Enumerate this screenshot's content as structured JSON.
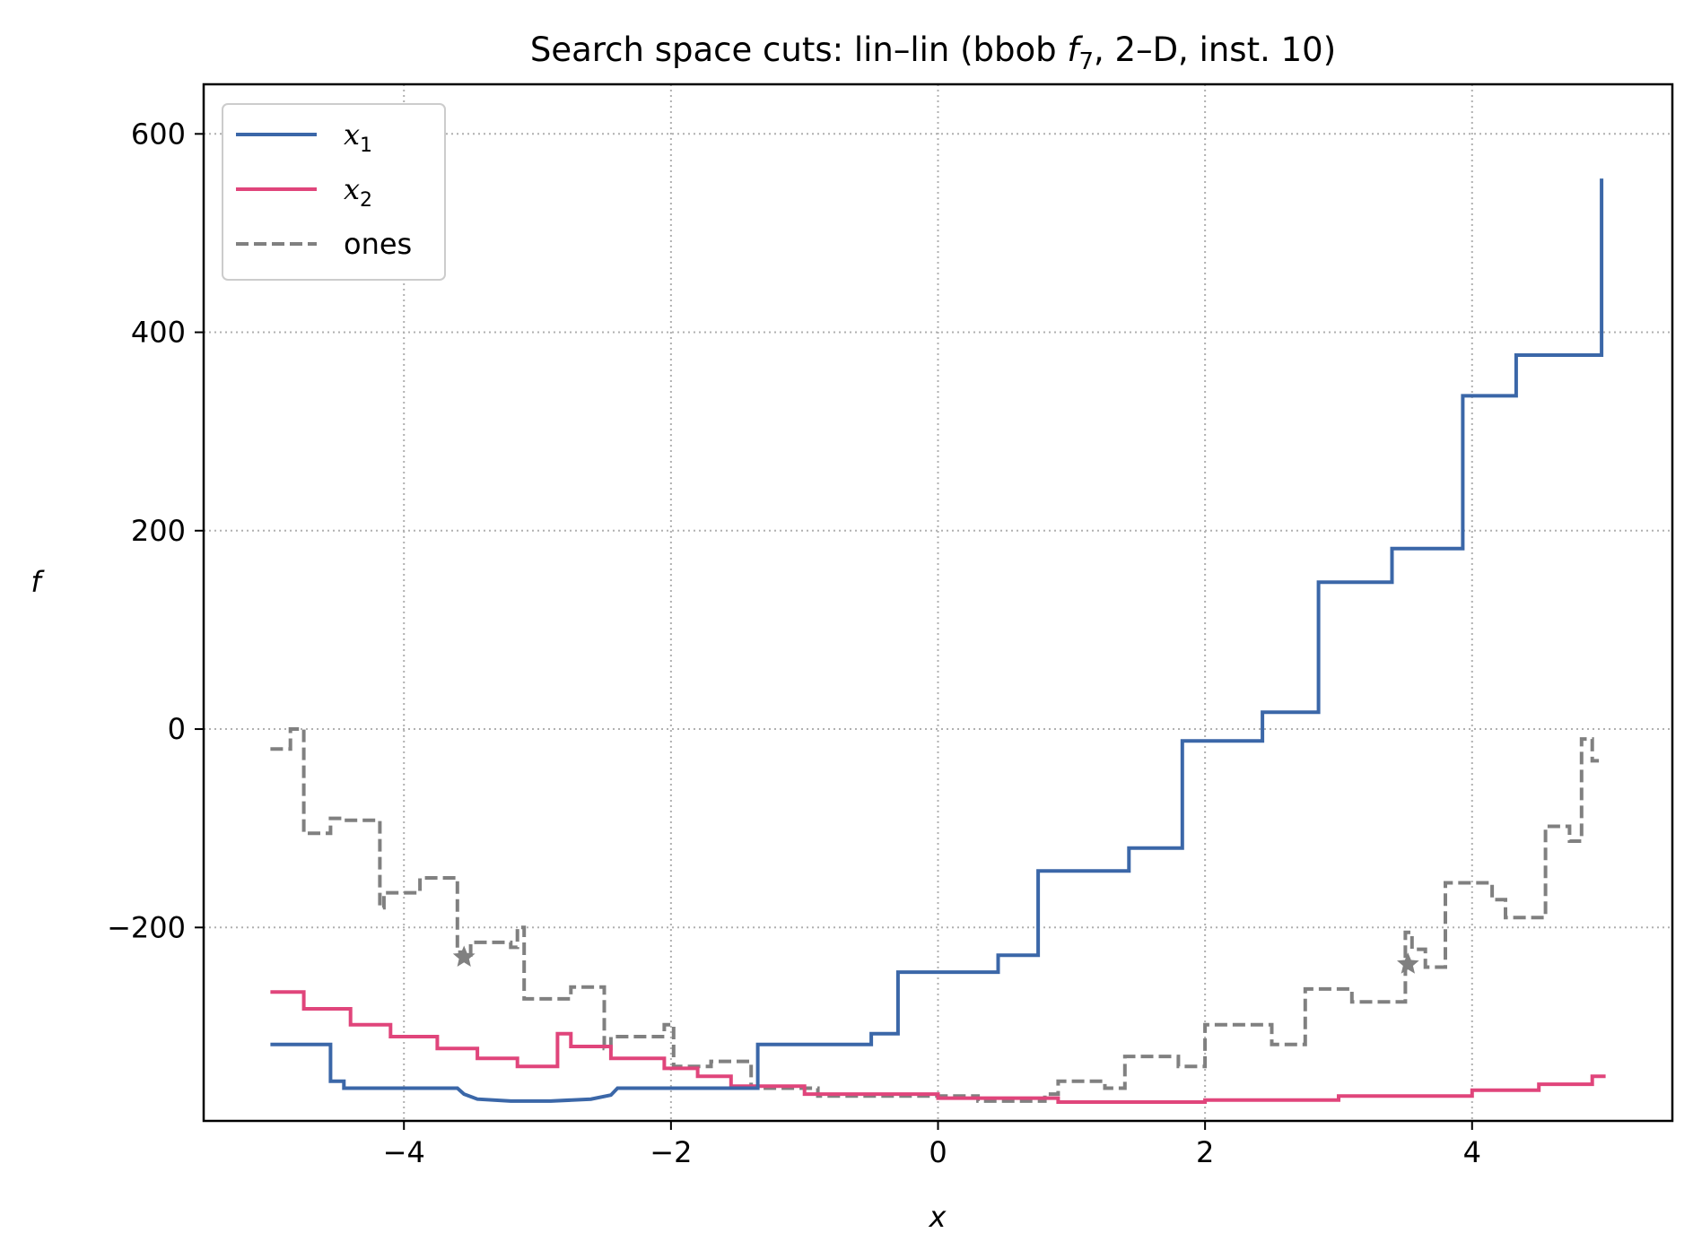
{
  "chart_data": {
    "type": "line",
    "title": "Search space cuts: lin–lin (bbob f7, 2–D, inst. 10)",
    "title_parts": {
      "before": "Search space cuts: lin–lin (bbob ",
      "func": "f",
      "func_sub": "7",
      "after": ", 2–D, inst. 10)"
    },
    "xlabel": "x",
    "ylabel": "f",
    "xlim": [
      -5.5,
      5.5
    ],
    "ylim": [
      -395,
      650
    ],
    "xticks": [
      -4,
      -2,
      0,
      2,
      4
    ],
    "xtick_labels": [
      "−4",
      "−2",
      "0",
      "2",
      "4"
    ],
    "yticks": [
      -200,
      0,
      200,
      400,
      600
    ],
    "ytick_labels": [
      "−200",
      "0",
      "200",
      "400",
      "600"
    ],
    "grid": true,
    "legend_position": "top-left",
    "series": [
      {
        "name": "x1",
        "legend_base": "x",
        "legend_sub": "1",
        "color": "#3b67a8",
        "style": "solid",
        "x": [
          -5.0,
          -4.55,
          -4.55,
          -4.45,
          -4.45,
          -3.6,
          -3.55,
          -3.45,
          -3.2,
          -2.9,
          -2.6,
          -2.45,
          -2.4,
          -2.4,
          -1.6,
          -1.5,
          -1.35,
          -1.35,
          -0.5,
          -0.5,
          -0.3,
          -0.3,
          0.45,
          0.45,
          0.75,
          0.75,
          1.43,
          1.43,
          1.83,
          1.83,
          2.43,
          2.43,
          2.85,
          2.85,
          3.4,
          3.4,
          3.93,
          3.93,
          4.33,
          4.33,
          4.97,
          4.97
        ],
        "y": [
          -318,
          -318,
          -355,
          -355,
          -362,
          -362,
          -368,
          -373,
          -375,
          -375,
          -373,
          -369,
          -362,
          -362,
          -362,
          -362,
          -362,
          -318,
          -318,
          -307,
          -307,
          -245,
          -245,
          -228,
          -228,
          -143,
          -143,
          -120,
          -120,
          -12,
          -12,
          17,
          17,
          148,
          148,
          182,
          182,
          336,
          336,
          377,
          377,
          555
        ]
      },
      {
        "name": "x2",
        "legend_base": "x",
        "legend_sub": "2",
        "color": "#e0457b",
        "style": "solid",
        "x": [
          -5.0,
          -4.75,
          -4.75,
          -4.4,
          -4.4,
          -4.1,
          -4.1,
          -3.75,
          -3.75,
          -3.45,
          -3.45,
          -3.15,
          -3.15,
          -2.85,
          -2.85,
          -2.75,
          -2.75,
          -2.45,
          -2.45,
          -2.05,
          -2.05,
          -1.8,
          -1.8,
          -1.55,
          -1.55,
          -1.0,
          -1.0,
          0.0,
          0.0,
          0.9,
          0.9,
          2.0,
          2.0,
          3.0,
          3.0,
          4.0,
          4.0,
          4.5,
          4.5,
          4.9,
          4.9,
          5.0
        ],
        "y": [
          -265,
          -265,
          -282,
          -282,
          -298,
          -298,
          -310,
          -310,
          -322,
          -322,
          -332,
          -332,
          -340,
          -340,
          -307,
          -307,
          -320,
          -320,
          -332,
          -332,
          -342,
          -342,
          -350,
          -350,
          -360,
          -360,
          -368,
          -368,
          -372,
          -372,
          -376,
          -376,
          -374,
          -374,
          -370,
          -370,
          -364,
          -364,
          -358,
          -358,
          -350,
          -350
        ]
      },
      {
        "name": "ones",
        "color": "#808080",
        "style": "dashed",
        "x": [
          -5.0,
          -4.85,
          -4.85,
          -4.75,
          -4.75,
          -4.7,
          -4.7,
          -4.55,
          -4.55,
          -4.45,
          -4.45,
          -4.18,
          -4.18,
          -4.15,
          -4.15,
          -3.95,
          -3.95,
          -3.88,
          -3.88,
          -3.6,
          -3.6,
          -3.55,
          -3.55,
          -3.5,
          -3.5,
          -3.2,
          -3.2,
          -3.15,
          -3.15,
          -3.1,
          -3.1,
          -2.75,
          -2.75,
          -2.5,
          -2.5,
          -2.45,
          -2.45,
          -2.05,
          -2.05,
          -1.98,
          -1.98,
          -1.7,
          -1.7,
          -1.4,
          -1.4,
          -0.9,
          -0.9,
          0.3,
          0.3,
          0.8,
          0.8,
          0.9,
          0.9,
          1.25,
          1.25,
          1.4,
          1.4,
          1.8,
          1.8,
          2.0,
          2.0,
          2.5,
          2.5,
          2.75,
          2.75,
          3.1,
          3.1,
          3.5,
          3.5,
          3.55,
          3.55,
          3.65,
          3.65,
          3.8,
          3.8,
          4.15,
          4.15,
          4.25,
          4.25,
          4.55,
          4.55,
          4.73,
          4.73,
          4.82,
          4.82,
          4.9,
          4.9,
          4.95
        ],
        "y": [
          -20,
          -20,
          0,
          0,
          -105,
          -105,
          -105,
          -105,
          -90,
          -90,
          -92,
          -92,
          -180,
          -180,
          -165,
          -165,
          -165,
          -165,
          -150,
          -150,
          -225,
          -225,
          -230,
          -230,
          -215,
          -215,
          -220,
          -220,
          -200,
          -200,
          -272,
          -272,
          -260,
          -260,
          -322,
          -322,
          -310,
          -310,
          -298,
          -298,
          -340,
          -340,
          -335,
          -335,
          -362,
          -362,
          -370,
          -370,
          -375,
          -375,
          -368,
          -368,
          -355,
          -355,
          -362,
          -362,
          -330,
          -330,
          -340,
          -340,
          -298,
          -298,
          -318,
          -318,
          -262,
          -262,
          -275,
          -275,
          -205,
          -205,
          -222,
          -222,
          -240,
          -240,
          -155,
          -155,
          -172,
          -172,
          -190,
          -190,
          -98,
          -98,
          -113,
          -113,
          -10,
          -10,
          -32,
          -32
        ],
        "stars": [
          {
            "x": -3.55,
            "y": -230
          },
          {
            "x": 3.52,
            "y": -237
          }
        ]
      }
    ]
  }
}
